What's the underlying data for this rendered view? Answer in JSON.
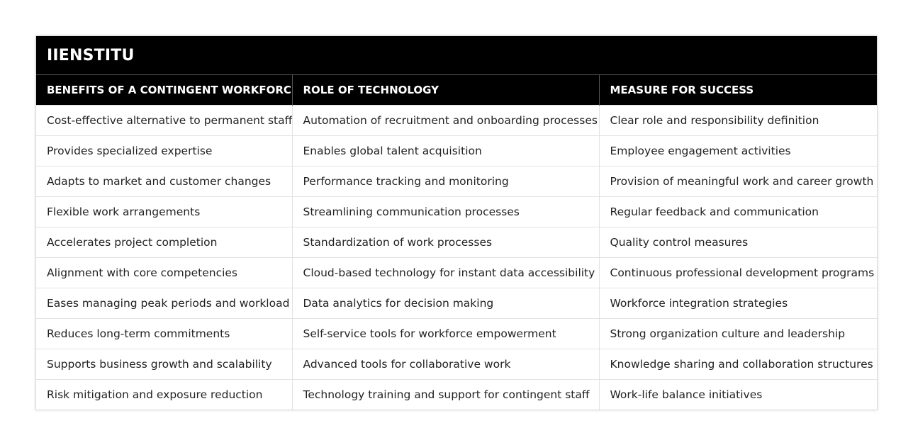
{
  "table": {
    "title": "IIENSTITU",
    "headers": [
      "BENEFITS OF A CONTINGENT WORKFORCE",
      "ROLE OF TECHNOLOGY",
      "MEASURE FOR SUCCESS"
    ],
    "rows": [
      [
        "Cost-effective alternative to permanent staff",
        "Automation of recruitment and onboarding processes",
        "Clear role and responsibility definition"
      ],
      [
        "Provides specialized expertise",
        "Enables global talent acquisition",
        "Employee engagement activities"
      ],
      [
        "Adapts to market and customer changes",
        "Performance tracking and monitoring",
        "Provision of meaningful work and career growth"
      ],
      [
        "Flexible work arrangements",
        "Streamlining communication processes",
        "Regular feedback and communication"
      ],
      [
        "Accelerates project completion",
        "Standardization of work processes",
        "Quality control measures"
      ],
      [
        "Alignment with core competencies",
        "Cloud-based technology for instant data accessibility",
        "Continuous professional development programs"
      ],
      [
        "Eases managing peak periods and workload",
        "Data analytics for decision making",
        "Workforce integration strategies"
      ],
      [
        "Reduces long-term commitments",
        "Self-service tools for workforce empowerment",
        "Strong organization culture and leadership"
      ],
      [
        "Supports business growth and scalability",
        "Advanced tools for collaborative work",
        "Knowledge sharing and collaboration structures"
      ],
      [
        "Risk mitigation and exposure reduction",
        "Technology training and support for contingent staff",
        "Work-life balance initiatives"
      ]
    ]
  }
}
